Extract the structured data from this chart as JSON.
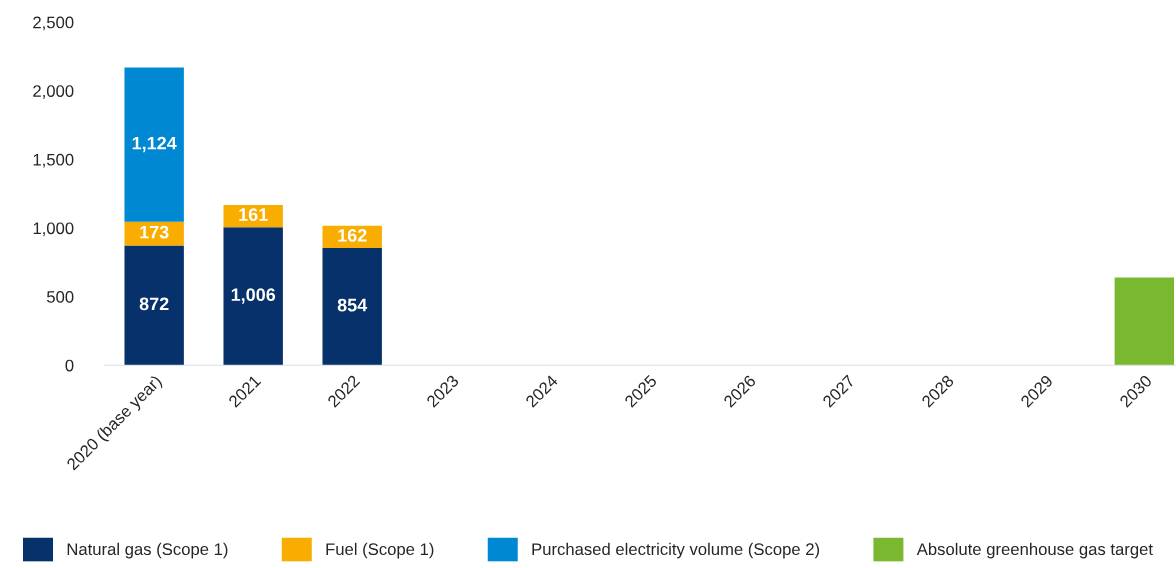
{
  "chart_data": {
    "type": "bar",
    "stacked": true,
    "categories": [
      "2020 (base year)",
      "2021",
      "2022",
      "2023",
      "2024",
      "2025",
      "2026",
      "2027",
      "2028",
      "2029",
      "2030"
    ],
    "series": [
      {
        "name": "Natural gas (Scope 1)",
        "color": "#06316a",
        "values": [
          872,
          1006,
          854,
          null,
          null,
          null,
          null,
          null,
          null,
          null,
          null
        ],
        "value_labels": [
          "872",
          "1,006",
          "854",
          null,
          null,
          null,
          null,
          null,
          null,
          null,
          null
        ]
      },
      {
        "name": "Fuel (Scope 1)",
        "color": "#f9ad00",
        "values": [
          173,
          161,
          162,
          null,
          null,
          null,
          null,
          null,
          null,
          null,
          null
        ],
        "value_labels": [
          "173",
          "161",
          "162",
          null,
          null,
          null,
          null,
          null,
          null,
          null,
          null
        ]
      },
      {
        "name": "Purchased electricity volume (Scope 2)",
        "color": "#0089d2",
        "values": [
          1124,
          null,
          null,
          null,
          null,
          null,
          null,
          null,
          null,
          null,
          null
        ],
        "value_labels": [
          "1,124",
          null,
          null,
          null,
          null,
          null,
          null,
          null,
          null,
          null,
          null
        ]
      },
      {
        "name": "Absolute greenhouse gas target",
        "color": "#7ab830",
        "values": [
          null,
          null,
          null,
          null,
          null,
          null,
          null,
          null,
          null,
          null,
          640
        ]
      }
    ],
    "ylim": [
      0,
      2500
    ],
    "yticks": [
      {
        "value": 0,
        "label": "0"
      },
      {
        "value": 500,
        "label": "500"
      },
      {
        "value": 1000,
        "label": "1,000"
      },
      {
        "value": 1500,
        "label": "1,500"
      },
      {
        "value": 2000,
        "label": "2,000"
      },
      {
        "value": 2500,
        "label": "2,500"
      }
    ],
    "grid": false,
    "legend": "bottom"
  }
}
